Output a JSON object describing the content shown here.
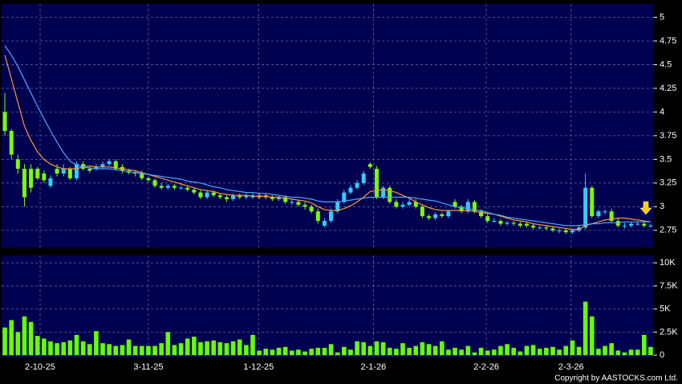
{
  "chart_data": [
    {
      "type": "candlestick",
      "xlim": [
        -0.5,
        99.5
      ],
      "ylim": [
        2.57,
        5.14
      ],
      "yticks": [
        2.75,
        3,
        3.25,
        3.5,
        3.75,
        4,
        4.25,
        4.5,
        4.75,
        5
      ],
      "grid": true,
      "up_color": "#33ccff",
      "down_color": "#7cfc00",
      "open": [
        4.0,
        3.8,
        3.5,
        3.4,
        3.4,
        3.4,
        3.35,
        3.22,
        3.4,
        3.35,
        3.4,
        3.3,
        3.45,
        3.4,
        3.4,
        3.42,
        3.45,
        3.48,
        3.42,
        3.38,
        3.36,
        3.35,
        3.3,
        3.28,
        3.22,
        3.2,
        3.22,
        3.2,
        3.2,
        3.18,
        3.15,
        3.1,
        3.15,
        3.12,
        3.1,
        3.08,
        3.12,
        3.1,
        3.1,
        3.12,
        3.12,
        3.1,
        3.08,
        3.1,
        3.05,
        3.05,
        3.02,
        3.0,
        2.95,
        2.8,
        2.85,
        2.95,
        3.05,
        3.15,
        3.2,
        3.25,
        3.45,
        3.4,
        3.1,
        3.2,
        3.05,
        3.0,
        3.02,
        3.05,
        3.0,
        2.9,
        2.88,
        2.92,
        2.9,
        3.05,
        3.0,
        2.95,
        3.05,
        2.95,
        2.9,
        2.85,
        2.85,
        2.82,
        2.83,
        2.82,
        2.82,
        2.8,
        2.78,
        2.78,
        2.77,
        2.75,
        2.75,
        2.73,
        2.75,
        2.78,
        3.2,
        2.9,
        2.95,
        2.95,
        2.85,
        2.8,
        2.8,
        2.82,
        2.82,
        2.8
      ],
      "high": [
        4.2,
        3.82,
        3.55,
        3.45,
        3.45,
        3.42,
        3.38,
        3.33,
        3.45,
        3.45,
        3.42,
        3.48,
        3.48,
        3.42,
        3.45,
        3.48,
        3.5,
        3.5,
        3.45,
        3.4,
        3.38,
        3.38,
        3.32,
        3.3,
        3.25,
        3.24,
        3.24,
        3.22,
        3.22,
        3.2,
        3.18,
        3.18,
        3.17,
        3.14,
        3.12,
        3.14,
        3.14,
        3.14,
        3.14,
        3.14,
        3.14,
        3.12,
        3.12,
        3.12,
        3.08,
        3.07,
        3.05,
        3.02,
        2.98,
        2.88,
        2.98,
        3.08,
        3.18,
        3.23,
        3.28,
        3.38,
        3.47,
        3.43,
        3.22,
        3.22,
        3.08,
        3.05,
        3.08,
        3.08,
        3.02,
        2.92,
        2.94,
        2.94,
        2.97,
        3.08,
        3.02,
        3.08,
        3.07,
        2.97,
        2.92,
        2.88,
        2.87,
        2.85,
        2.85,
        2.84,
        2.84,
        2.82,
        2.8,
        2.8,
        2.79,
        2.77,
        2.77,
        2.77,
        2.8,
        3.35,
        3.22,
        2.97,
        2.97,
        2.98,
        2.88,
        2.83,
        2.84,
        2.84,
        2.84,
        2.82
      ],
      "low": [
        3.75,
        3.5,
        3.35,
        3.0,
        3.15,
        3.28,
        3.25,
        3.2,
        3.32,
        3.32,
        3.28,
        3.28,
        3.38,
        3.36,
        3.38,
        3.4,
        3.43,
        3.38,
        3.35,
        3.34,
        3.32,
        3.28,
        3.26,
        3.2,
        3.18,
        3.18,
        3.18,
        3.18,
        3.16,
        3.13,
        3.08,
        3.08,
        3.1,
        3.08,
        3.05,
        3.06,
        3.08,
        3.08,
        3.08,
        3.08,
        3.08,
        3.06,
        3.06,
        3.03,
        3.02,
        3.0,
        2.97,
        2.93,
        2.82,
        2.78,
        2.83,
        2.93,
        3.03,
        3.13,
        3.18,
        3.23,
        3.4,
        3.08,
        3.08,
        3.03,
        2.98,
        2.98,
        3.0,
        2.98,
        2.88,
        2.86,
        2.86,
        2.88,
        2.88,
        2.98,
        2.93,
        2.93,
        2.93,
        2.88,
        2.83,
        2.83,
        2.8,
        2.8,
        2.8,
        2.78,
        2.78,
        2.76,
        2.76,
        2.75,
        2.73,
        2.72,
        2.71,
        2.71,
        2.73,
        2.76,
        2.88,
        2.88,
        2.92,
        2.83,
        2.78,
        2.77,
        2.78,
        2.8,
        2.78,
        2.78
      ],
      "close": [
        3.8,
        3.55,
        3.4,
        3.1,
        3.2,
        3.3,
        3.28,
        3.3,
        3.35,
        3.4,
        3.3,
        3.45,
        3.4,
        3.38,
        3.42,
        3.45,
        3.48,
        3.4,
        3.38,
        3.36,
        3.35,
        3.3,
        3.28,
        3.22,
        3.2,
        3.22,
        3.2,
        3.2,
        3.18,
        3.15,
        3.1,
        3.15,
        3.12,
        3.1,
        3.08,
        3.12,
        3.1,
        3.12,
        3.12,
        3.1,
        3.1,
        3.08,
        3.1,
        3.05,
        3.05,
        3.02,
        3.0,
        2.95,
        2.85,
        2.85,
        2.95,
        3.05,
        3.15,
        3.2,
        3.25,
        3.35,
        3.42,
        3.1,
        3.2,
        3.05,
        3.0,
        3.02,
        3.05,
        3.0,
        2.9,
        2.88,
        2.92,
        2.9,
        2.95,
        3.0,
        2.95,
        3.05,
        2.95,
        2.9,
        2.85,
        2.85,
        2.82,
        2.83,
        2.82,
        2.8,
        2.8,
        2.78,
        2.78,
        2.77,
        2.75,
        2.75,
        2.73,
        2.75,
        2.78,
        3.2,
        2.9,
        2.95,
        2.95,
        2.85,
        2.8,
        2.8,
        2.82,
        2.82,
        2.8,
        2.8
      ],
      "series": [
        {
          "color": "#ff9933",
          "values": [
            4.6,
            4.35,
            4.1,
            3.85,
            3.7,
            3.58,
            3.5,
            3.45,
            3.42,
            3.4,
            3.4,
            3.4,
            3.42,
            3.43,
            3.42,
            3.42,
            3.42,
            3.41,
            3.4,
            3.39,
            3.38,
            3.36,
            3.34,
            3.32,
            3.3,
            3.28,
            3.26,
            3.24,
            3.22,
            3.2,
            3.18,
            3.17,
            3.16,
            3.14,
            3.13,
            3.12,
            3.12,
            3.12,
            3.11,
            3.11,
            3.11,
            3.1,
            3.1,
            3.09,
            3.08,
            3.07,
            3.06,
            3.04,
            3.0,
            2.97,
            2.96,
            2.96,
            2.98,
            3.01,
            3.05,
            3.1,
            3.16,
            3.17,
            3.18,
            3.17,
            3.15,
            3.12,
            3.09,
            3.05,
            3.02,
            2.99,
            2.97,
            2.96,
            2.96,
            2.96,
            2.96,
            2.96,
            2.95,
            2.94,
            2.93,
            2.92,
            2.9,
            2.88,
            2.86,
            2.85,
            2.84,
            2.82,
            2.81,
            2.8,
            2.79,
            2.78,
            2.77,
            2.76,
            2.76,
            2.8,
            2.82,
            2.84,
            2.86,
            2.87,
            2.88,
            2.88,
            2.87,
            2.86,
            2.85,
            2.84
          ]
        },
        {
          "color": "#4da6ff",
          "values": [
            4.7,
            4.6,
            4.48,
            4.34,
            4.2,
            4.06,
            3.93,
            3.8,
            3.68,
            3.57,
            3.48,
            3.44,
            3.42,
            3.41,
            3.4,
            3.4,
            3.4,
            3.39,
            3.38,
            3.37,
            3.36,
            3.35,
            3.34,
            3.33,
            3.32,
            3.31,
            3.3,
            3.29,
            3.27,
            3.26,
            3.25,
            3.23,
            3.21,
            3.2,
            3.18,
            3.17,
            3.16,
            3.15,
            3.15,
            3.14,
            3.14,
            3.13,
            3.12,
            3.11,
            3.1,
            3.1,
            3.09,
            3.08,
            3.06,
            3.05,
            3.05,
            3.05,
            3.06,
            3.07,
            3.08,
            3.09,
            3.1,
            3.1,
            3.1,
            3.1,
            3.1,
            3.1,
            3.1,
            3.09,
            3.08,
            3.07,
            3.06,
            3.04,
            3.02,
            3.0,
            2.99,
            2.98,
            2.97,
            2.96,
            2.94,
            2.92,
            2.91,
            2.89,
            2.88,
            2.87,
            2.86,
            2.85,
            2.84,
            2.83,
            2.82,
            2.81,
            2.8,
            2.8,
            2.8,
            2.81,
            2.82,
            2.82,
            2.83,
            2.83,
            2.83,
            2.84,
            2.84,
            2.84,
            2.84,
            2.84
          ]
        }
      ]
    },
    {
      "type": "bar",
      "xlim": [
        -0.5,
        99.5
      ],
      "xticks": [
        {
          "value": 5.4,
          "label": "2-10-25"
        },
        {
          "value": 22,
          "label": "3-11-25"
        },
        {
          "value": 38.9,
          "label": "1-12-25"
        },
        {
          "value": 56.5,
          "label": "2-1-26"
        },
        {
          "value": 73.8,
          "label": "2-2-26"
        },
        {
          "value": 86.8,
          "label": "2-3-26"
        }
      ],
      "ylim": [
        -250,
        10800
      ],
      "yticks": [
        0,
        {
          "value": 2500,
          "label": "2.5K"
        },
        {
          "value": 5000,
          "label": "5K"
        },
        {
          "value": 7500,
          "label": "7.5K"
        },
        {
          "value": 10000,
          "label": "10K"
        }
      ],
      "grid": true,
      "color": "#66ff00",
      "values": [
        3000,
        3800,
        2500,
        4200,
        3600,
        2100,
        1800,
        1500,
        1300,
        1400,
        1600,
        2200,
        1500,
        1200,
        2600,
        1300,
        1200,
        1000,
        1100,
        1700,
        1000,
        1000,
        1000,
        1000,
        1300,
        2500,
        1100,
        1300,
        1800,
        2000,
        1400,
        1500,
        1600,
        1400,
        1300,
        1500,
        1700,
        1100,
        2200,
        500,
        700,
        600,
        800,
        900,
        500,
        600,
        400,
        700,
        800,
        800,
        1200,
        300,
        900,
        600,
        1500,
        1400,
        1000,
        1500,
        1400,
        800,
        700,
        1300,
        800,
        1000,
        1400,
        1200,
        1000,
        1500,
        600,
        800,
        600,
        1000,
        300,
        800,
        500,
        600,
        1000,
        1200,
        800,
        400,
        1000,
        1100,
        700,
        800,
        900,
        600,
        1000,
        1600,
        900,
        5800,
        4200,
        700,
        1000,
        1300,
        500,
        300,
        600,
        600,
        2200,
        900
      ]
    }
  ],
  "copyright": "Copyright by AASTOCKS.com Ltd."
}
